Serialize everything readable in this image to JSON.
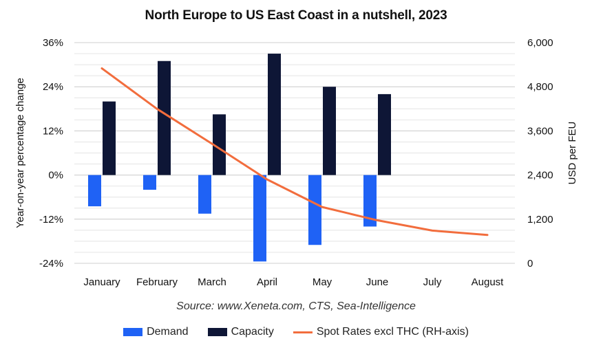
{
  "chart_data": {
    "type": "bar",
    "title": "North Europe to US East Coast in a nutshell, 2023",
    "source": "Source: www.Xeneta.com, CTS, Sea-Intelligence",
    "categories": [
      "January",
      "February",
      "March",
      "April",
      "May",
      "June",
      "July",
      "August"
    ],
    "ylabel": "Year-on-year percentage change",
    "y2label": "USD per FEU",
    "ylim": [
      -24,
      36
    ],
    "y2lim": [
      0,
      6000
    ],
    "yticks": [
      "36%",
      "24%",
      "12%",
      "0%",
      "-12%",
      "-24%"
    ],
    "y2ticks": [
      "6,000",
      "4,800",
      "3,600",
      "2,400",
      "1,200",
      "0"
    ],
    "series": [
      {
        "name": "Demand",
        "type": "bar",
        "axis": "left",
        "color": "#1f62f5",
        "values": [
          -8.5,
          -4,
          -10.5,
          -23.5,
          -19,
          -14,
          null,
          null
        ]
      },
      {
        "name": "Capacity",
        "type": "bar",
        "axis": "left",
        "color": "#0e1636",
        "values": [
          20,
          31,
          16.5,
          33,
          24,
          22,
          null,
          null
        ]
      },
      {
        "name": "Spot Rates excl THC (RH-axis)",
        "type": "line",
        "axis": "right",
        "color": "#f26d3d",
        "values": [
          5300,
          4200,
          3250,
          2280,
          1530,
          1170,
          890,
          770
        ]
      }
    ],
    "grid": true,
    "legend_position": "bottom"
  }
}
